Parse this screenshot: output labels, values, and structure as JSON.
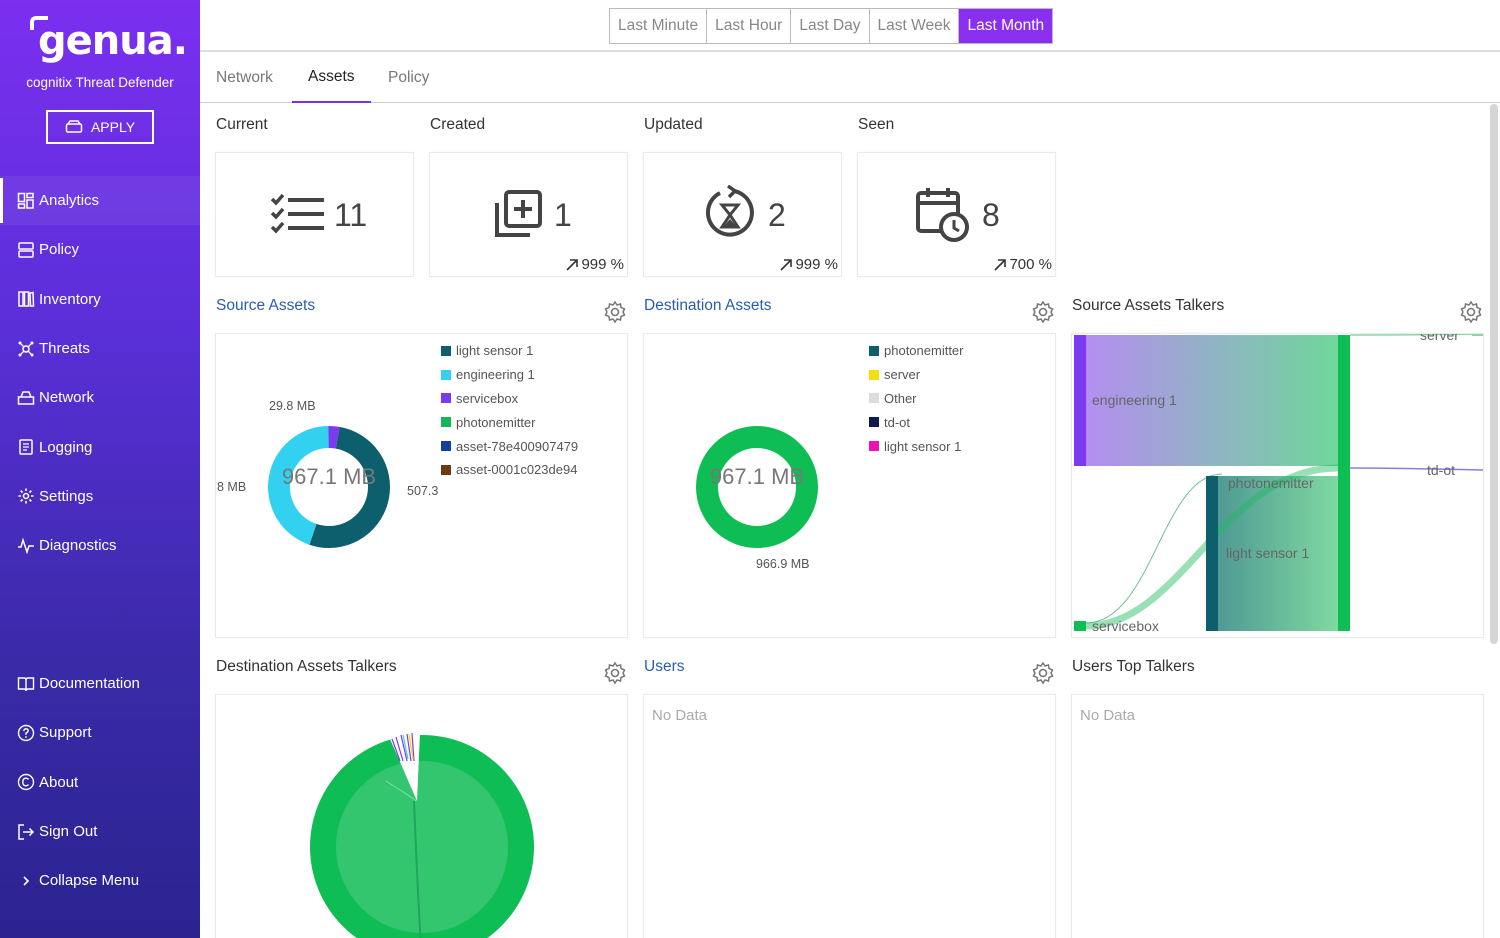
{
  "brand": {
    "logo_text": "genua.",
    "product": "cognitix Threat Defender",
    "apply_label": "APPLY"
  },
  "nav": {
    "items": [
      {
        "label": "Analytics",
        "icon": "analytics-icon"
      },
      {
        "label": "Policy",
        "icon": "policy-icon"
      },
      {
        "label": "Inventory",
        "icon": "inventory-icon"
      },
      {
        "label": "Threats",
        "icon": "threats-icon"
      },
      {
        "label": "Network",
        "icon": "network-icon"
      },
      {
        "label": "Logging",
        "icon": "logging-icon"
      },
      {
        "label": "Settings",
        "icon": "gear-icon"
      },
      {
        "label": "Diagnostics",
        "icon": "pulse-icon"
      }
    ],
    "bottom": [
      {
        "label": "Documentation",
        "icon": "book-icon"
      },
      {
        "label": "Support",
        "icon": "help-icon"
      },
      {
        "label": "About",
        "icon": "copyright-icon"
      },
      {
        "label": "Sign Out",
        "icon": "sign-out-icon"
      },
      {
        "label": "Collapse Menu",
        "icon": "chevron-right-icon"
      }
    ]
  },
  "time_range": {
    "options": [
      "Last Minute",
      "Last Hour",
      "Last Day",
      "Last Week",
      "Last Month"
    ],
    "selected": "Last Month"
  },
  "tabs": [
    "Network",
    "Assets",
    "Policy"
  ],
  "active_tab": "Assets",
  "stats": {
    "current": {
      "label": "Current",
      "value": "11",
      "icon": "checklist-icon"
    },
    "created": {
      "label": "Created",
      "value": "1",
      "delta": "999 %",
      "icon": "add-box-icon"
    },
    "updated": {
      "label": "Updated",
      "value": "2",
      "delta": "999 %",
      "icon": "update-hourglass-icon"
    },
    "seen": {
      "label": "Seen",
      "value": "8",
      "delta": "700 %",
      "icon": "calendar-clock-icon"
    }
  },
  "panels": {
    "source_assets": {
      "title": "Source Assets",
      "center": "967.1 MB",
      "labels": {
        "top": "29.8 MB",
        "left": "8 MB",
        "right": "507.3"
      },
      "legend": [
        {
          "name": "light sensor 1",
          "color": "#0e5f6e"
        },
        {
          "name": "engineering 1",
          "color": "#33d1f0"
        },
        {
          "name": "servicebox",
          "color": "#7b3af0"
        },
        {
          "name": "photonemitter",
          "color": "#11b855"
        },
        {
          "name": "asset-78e400907479",
          "color": "#133f99"
        },
        {
          "name": "asset-0001c023de94",
          "color": "#6b3a10"
        }
      ]
    },
    "destination_assets": {
      "title": "Destination Assets",
      "center": "967.1 MB",
      "labels": {
        "bottom": "966.9 MB"
      },
      "legend": [
        {
          "name": "photonemitter",
          "color": "#0e5f6e"
        },
        {
          "name": "server",
          "color": "#f5de10"
        },
        {
          "name": "Other",
          "color": "#dddddd"
        },
        {
          "name": "td-ot",
          "color": "#0d1a50"
        },
        {
          "name": "light sensor 1",
          "color": "#f010b8"
        }
      ]
    },
    "source_talkers": {
      "title": "Source Assets Talkers",
      "nodes": {
        "engineering": "engineering 1",
        "photon": "photonemitter",
        "light": "light sensor 1",
        "servicebox": "servicebox",
        "server": "server",
        "tdot": "td-ot"
      }
    },
    "destination_talkers": {
      "title": "Destination Assets Talkers"
    },
    "users": {
      "title": "Users",
      "empty": "No Data"
    },
    "users_top": {
      "title": "Users Top Talkers",
      "empty": "No Data"
    }
  },
  "colors": {
    "accent": "#8a2ff0",
    "link": "#2a5db0",
    "green": "#0fbd55"
  }
}
